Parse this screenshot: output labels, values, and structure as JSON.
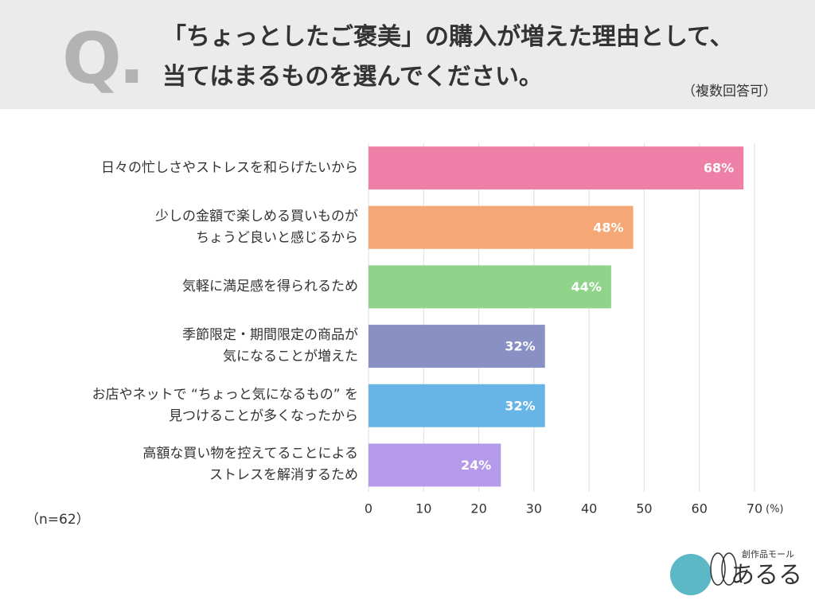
{
  "chart_data": {
    "type": "bar",
    "orientation": "horizontal",
    "label": "Q.",
    "title": "「ちょっとしたご褒美」の購入が増えた理由として、\n当てはまるものを選んでください。",
    "subtitle": "（複数回答可）",
    "categories": [
      "日々の忙しさやストレスを和らげたいから",
      "少しの金額で楽しめる買いものが\nちょうど良いと感じるから",
      "気軽に満足感を得られるため",
      "季節限定・期間限定の商品が\n気になることが増えた",
      "お店やネットで “ちょっと気になるもの” を\n見つけることが多くなったから",
      "高額な買い物を控えてることによる\nストレスを解消するため"
    ],
    "values": [
      68,
      48,
      44,
      32,
      32,
      24
    ],
    "value_labels": [
      "68%",
      "48%",
      "44%",
      "32%",
      "32%",
      "24%"
    ],
    "colors": [
      "#ee7fa6",
      "#f5a776",
      "#8fd48a",
      "#8890c4",
      "#67b5e6",
      "#b49ae8"
    ],
    "xlim": [
      0,
      70
    ],
    "xticks": [
      0,
      10,
      20,
      30,
      40,
      50,
      60,
      70
    ],
    "xlabel": "(%)",
    "grid": true,
    "note": "（n=62）"
  },
  "logo": {
    "tagline": "創作品モール",
    "text": "あるる"
  }
}
